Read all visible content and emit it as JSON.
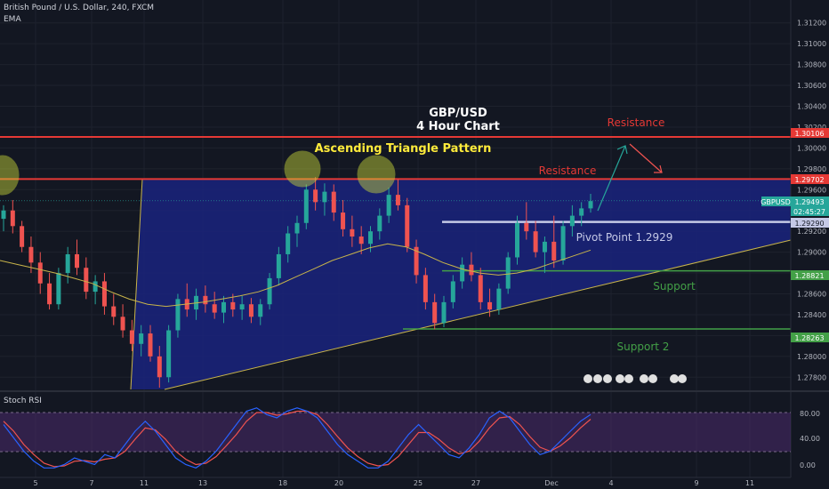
{
  "header": {
    "title": "British Pound / U.S. Dollar, 240, FXCM",
    "indicator": "EMA"
  },
  "colors": {
    "background": "#131722",
    "up": "#26a69a",
    "down": "#ef5350",
    "triangle_fill": "#1a237e",
    "triangle_edge": "#c8b44a",
    "resistance": "#e53935",
    "support": "#43a047",
    "pivot": "#c5c9e6",
    "annotation_yellow": "#ffeb3b",
    "arrow_green": "#26a69a",
    "arrow_red": "#ef5350",
    "rsi_k": "#2962ff",
    "rsi_d": "#ef5350",
    "rsi_band": "#4a2a6b"
  },
  "annotations": {
    "chart_title_1": "GBP/USD",
    "chart_title_2": "4 Hour Chart",
    "pattern": "Ascending Triangle Pattern",
    "resistance_upper": "Resistance",
    "resistance_lower": "Resistance",
    "pivot": "Pivot Point 1.2929",
    "support": "Support",
    "support2": "Support 2"
  },
  "price_tags": {
    "symbol": "GBPUSD",
    "last_price": "1.29493",
    "countdown": "02:45:27",
    "pivot": "1.29290",
    "resistance_upper": "1.30106",
    "resistance_lower": "1.29702",
    "support": "1.28821",
    "support2": "1.28263"
  },
  "rsi_panel": {
    "title": "Stoch RSI",
    "ticks": [
      "80.00",
      "40.00",
      "0.00"
    ]
  },
  "chart_data": {
    "type": "candlestick",
    "symbol": "GBPUSD",
    "timeframe": "240",
    "ylim": [
      1.277,
      1.313
    ],
    "y_ticks": [
      "1.31200",
      "1.31000",
      "1.30800",
      "1.30600",
      "1.30400",
      "1.30200",
      "1.30000",
      "1.29800",
      "1.29600",
      "1.29400",
      "1.29200",
      "1.29000",
      "1.28800",
      "1.28600",
      "1.28400",
      "1.28200",
      "1.28000",
      "1.27800"
    ],
    "x_ticks": [
      "5",
      "7",
      "11",
      "13",
      "18",
      "20",
      "25",
      "27",
      "Dec",
      "4",
      "9",
      "11"
    ],
    "levels": {
      "resistance_upper": 1.30106,
      "resistance_lower": 1.29702,
      "pivot": 1.2929,
      "support": 1.28821,
      "support2": 1.28263,
      "last": 1.29493
    },
    "candles": [
      [
        1.2932,
        1.2945,
        1.292,
        1.294
      ],
      [
        1.294,
        1.295,
        1.2918,
        1.2925
      ],
      [
        1.2925,
        1.293,
        1.29,
        1.2905
      ],
      [
        1.2905,
        1.2915,
        1.288,
        1.289
      ],
      [
        1.289,
        1.29,
        1.286,
        1.287
      ],
      [
        1.287,
        1.288,
        1.2845,
        1.285
      ],
      [
        1.285,
        1.2885,
        1.2845,
        1.288
      ],
      [
        1.288,
        1.2905,
        1.287,
        1.2898
      ],
      [
        1.2898,
        1.2912,
        1.2878,
        1.2885
      ],
      [
        1.2885,
        1.2895,
        1.2855,
        1.2862
      ],
      [
        1.2862,
        1.2878,
        1.285,
        1.2872
      ],
      [
        1.2872,
        1.288,
        1.284,
        1.2848
      ],
      [
        1.2848,
        1.286,
        1.283,
        1.2838
      ],
      [
        1.2838,
        1.285,
        1.2818,
        1.2825
      ],
      [
        1.2825,
        1.2835,
        1.2805,
        1.2812
      ],
      [
        1.2812,
        1.283,
        1.28,
        1.2822
      ],
      [
        1.2822,
        1.283,
        1.2795,
        1.28
      ],
      [
        1.28,
        1.281,
        1.277,
        1.278
      ],
      [
        1.278,
        1.283,
        1.2775,
        1.2825
      ],
      [
        1.2825,
        1.286,
        1.2818,
        1.2855
      ],
      [
        1.2855,
        1.287,
        1.2838,
        1.2845
      ],
      [
        1.2845,
        1.2865,
        1.2835,
        1.2858
      ],
      [
        1.2858,
        1.2868,
        1.2842,
        1.285
      ],
      [
        1.285,
        1.2862,
        1.2836,
        1.2842
      ],
      [
        1.2842,
        1.2858,
        1.2832,
        1.2852
      ],
      [
        1.2852,
        1.286,
        1.2838,
        1.2845
      ],
      [
        1.2845,
        1.2858,
        1.2835,
        1.285
      ],
      [
        1.285,
        1.2856,
        1.2832,
        1.2838
      ],
      [
        1.2838,
        1.2855,
        1.283,
        1.285
      ],
      [
        1.285,
        1.288,
        1.2845,
        1.2875
      ],
      [
        1.2875,
        1.2905,
        1.2868,
        1.2898
      ],
      [
        1.2898,
        1.2925,
        1.289,
        1.2918
      ],
      [
        1.2918,
        1.2935,
        1.2905,
        1.2928
      ],
      [
        1.2928,
        1.2965,
        1.2922,
        1.296
      ],
      [
        1.296,
        1.2972,
        1.294,
        1.2948
      ],
      [
        1.2948,
        1.2966,
        1.2935,
        1.2958
      ],
      [
        1.2958,
        1.2965,
        1.293,
        1.2938
      ],
      [
        1.2938,
        1.295,
        1.2915,
        1.2922
      ],
      [
        1.2922,
        1.2935,
        1.2905,
        1.2915
      ],
      [
        1.2915,
        1.2925,
        1.2898,
        1.2908
      ],
      [
        1.2908,
        1.2925,
        1.29,
        1.292
      ],
      [
        1.292,
        1.2942,
        1.2912,
        1.2935
      ],
      [
        1.2935,
        1.2962,
        1.2928,
        1.2955
      ],
      [
        1.2955,
        1.297,
        1.294,
        1.2945
      ],
      [
        1.2945,
        1.2952,
        1.29,
        1.2905
      ],
      [
        1.2905,
        1.2912,
        1.287,
        1.2878
      ],
      [
        1.2878,
        1.2885,
        1.2845,
        1.2852
      ],
      [
        1.2852,
        1.286,
        1.2826,
        1.2832
      ],
      [
        1.2832,
        1.2858,
        1.2828,
        1.2852
      ],
      [
        1.2852,
        1.2878,
        1.2846,
        1.2872
      ],
      [
        1.2872,
        1.2895,
        1.2865,
        1.2888
      ],
      [
        1.2888,
        1.29,
        1.2872,
        1.2878
      ],
      [
        1.2878,
        1.2885,
        1.2845,
        1.2852
      ],
      [
        1.2852,
        1.2865,
        1.2838,
        1.2845
      ],
      [
        1.2845,
        1.287,
        1.284,
        1.2865
      ],
      [
        1.2865,
        1.29,
        1.286,
        1.2895
      ],
      [
        1.2895,
        1.2935,
        1.2888,
        1.2928
      ],
      [
        1.2928,
        1.2948,
        1.2912,
        1.292
      ],
      [
        1.292,
        1.293,
        1.2895,
        1.29
      ],
      [
        1.29,
        1.2915,
        1.288,
        1.291
      ],
      [
        1.291,
        1.2935,
        1.2885,
        1.2892
      ],
      [
        1.2892,
        1.293,
        1.2888,
        1.2925
      ],
      [
        1.2925,
        1.2945,
        1.2915,
        1.2935
      ],
      [
        1.2935,
        1.2948,
        1.2925,
        1.2942
      ],
      [
        1.2942,
        1.2956,
        1.2938,
        1.2949
      ]
    ],
    "ema": [
      1.2892,
      1.2888,
      1.2884,
      1.288,
      1.2875,
      1.287,
      1.2862,
      1.2855,
      1.285,
      1.2848,
      1.285,
      1.2852,
      1.2855,
      1.2858,
      1.2862,
      1.2868,
      1.2876,
      1.2884,
      1.2892,
      1.2898,
      1.2904,
      1.2908,
      1.2905,
      1.2898,
      1.289,
      1.2884,
      1.288,
      1.2878,
      1.288,
      1.2884,
      1.289,
      1.2896,
      1.2902
    ],
    "stoch_rsi": {
      "k": [
        70,
        50,
        30,
        15,
        5,
        5,
        10,
        20,
        15,
        10,
        25,
        20,
        40,
        60,
        75,
        60,
        40,
        20,
        10,
        5,
        15,
        30,
        50,
        70,
        90,
        95,
        85,
        80,
        90,
        95,
        90,
        80,
        60,
        40,
        25,
        15,
        5,
        5,
        15,
        35,
        55,
        70,
        55,
        40,
        25,
        20,
        35,
        55,
        80,
        90,
        80,
        60,
        40,
        25,
        30,
        45,
        60,
        75,
        85
      ],
      "d": [
        75,
        60,
        40,
        25,
        12,
        7,
        8,
        15,
        16,
        14,
        18,
        20,
        30,
        48,
        65,
        62,
        48,
        30,
        18,
        10,
        12,
        22,
        38,
        55,
        75,
        88,
        88,
        84,
        86,
        90,
        90,
        85,
        70,
        52,
        35,
        22,
        12,
        8,
        10,
        22,
        40,
        58,
        58,
        48,
        35,
        26,
        30,
        45,
        65,
        80,
        82,
        70,
        52,
        36,
        30,
        38,
        50,
        65,
        78
      ]
    }
  }
}
